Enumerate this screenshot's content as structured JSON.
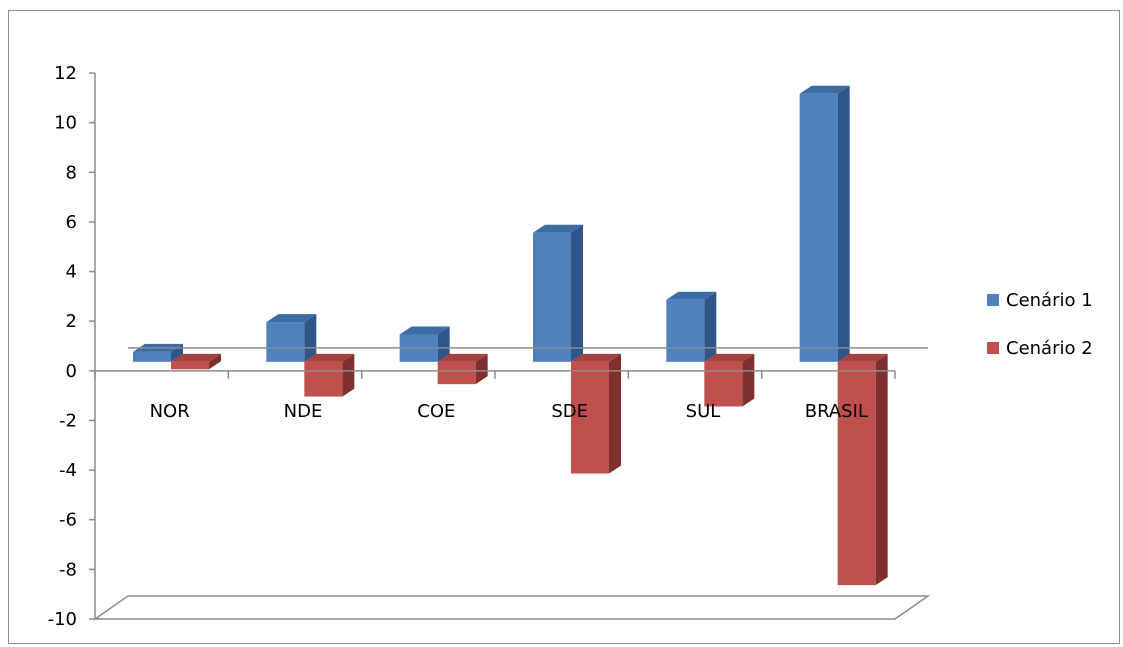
{
  "chart_data": {
    "type": "bar",
    "categories": [
      "NOR",
      "NDE",
      "COE",
      "SDE",
      "SUL",
      "BRASIL"
    ],
    "series": [
      {
        "name": "Cenário 1",
        "values": [
          0.4,
          1.6,
          1.1,
          5.2,
          2.5,
          10.8
        ]
      },
      {
        "name": "Cenário 2",
        "values": [
          -0.3,
          -1.4,
          -0.9,
          -4.5,
          -1.8,
          -9.0
        ]
      }
    ],
    "ylim": [
      -10,
      12
    ],
    "yticks": [
      12,
      10,
      8,
      6,
      4,
      2,
      0,
      -2,
      -4,
      -6,
      -8,
      -10
    ],
    "grid": false,
    "legend": "right",
    "title": "",
    "xlabel": "",
    "ylabel": "",
    "colors": {
      "Cenário 1": {
        "front": "#4f81bd",
        "top": "#3d6ba4",
        "side": "#2f5689"
      },
      "Cenário 2": {
        "front": "#c0504d",
        "top": "#a5413e",
        "side": "#7f302e"
      }
    }
  }
}
